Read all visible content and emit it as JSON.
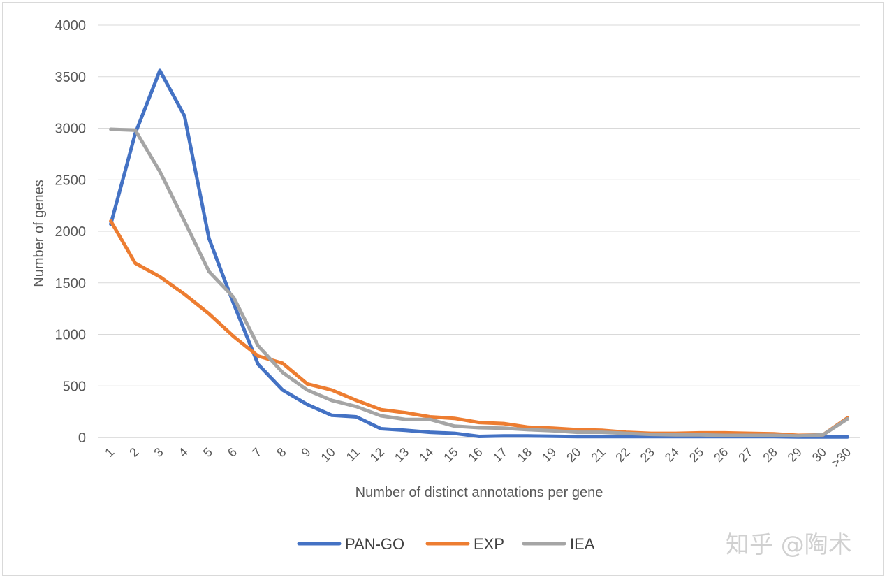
{
  "chart_data": {
    "type": "line",
    "title": "",
    "xlabel": "Number of distinct annotations per gene",
    "ylabel": "Number of genes",
    "ylim": [
      0,
      4000
    ],
    "yticks": [
      0,
      500,
      1000,
      1500,
      2000,
      2500,
      3000,
      3500,
      4000
    ],
    "grid": true,
    "legend_position": "bottom",
    "categories": [
      "1",
      "2",
      "3",
      "4",
      "5",
      "6",
      "7",
      "8",
      "9",
      "10",
      "11",
      "12",
      "13",
      "14",
      "15",
      "16",
      "17",
      "18",
      "19",
      "20",
      "21",
      "22",
      "23",
      "24",
      "25",
      "26",
      "27",
      "28",
      "29",
      "30",
      ">30"
    ],
    "series": [
      {
        "name": "PAN-GO",
        "color": "#4472c4",
        "values": [
          2070,
          2950,
          3560,
          3120,
          1930,
          1300,
          710,
          460,
          320,
          215,
          200,
          85,
          70,
          50,
          40,
          10,
          15,
          15,
          12,
          8,
          8,
          8,
          8,
          8,
          8,
          8,
          8,
          8,
          5,
          5,
          5
        ]
      },
      {
        "name": "EXP",
        "color": "#ed7d31",
        "values": [
          2100,
          1690,
          1560,
          1390,
          1200,
          980,
          790,
          720,
          520,
          460,
          360,
          270,
          240,
          200,
          185,
          145,
          135,
          100,
          90,
          75,
          70,
          50,
          40,
          40,
          45,
          45,
          40,
          35,
          20,
          25,
          190
        ]
      },
      {
        "name": "IEA",
        "color": "#a5a5a5",
        "values": [
          2990,
          2980,
          2580,
          2100,
          1610,
          1360,
          890,
          630,
          460,
          360,
          300,
          210,
          175,
          175,
          110,
          95,
          90,
          75,
          65,
          50,
          50,
          40,
          30,
          25,
          25,
          20,
          20,
          20,
          15,
          25,
          180
        ]
      }
    ]
  },
  "watermark": "知乎 @陶术"
}
